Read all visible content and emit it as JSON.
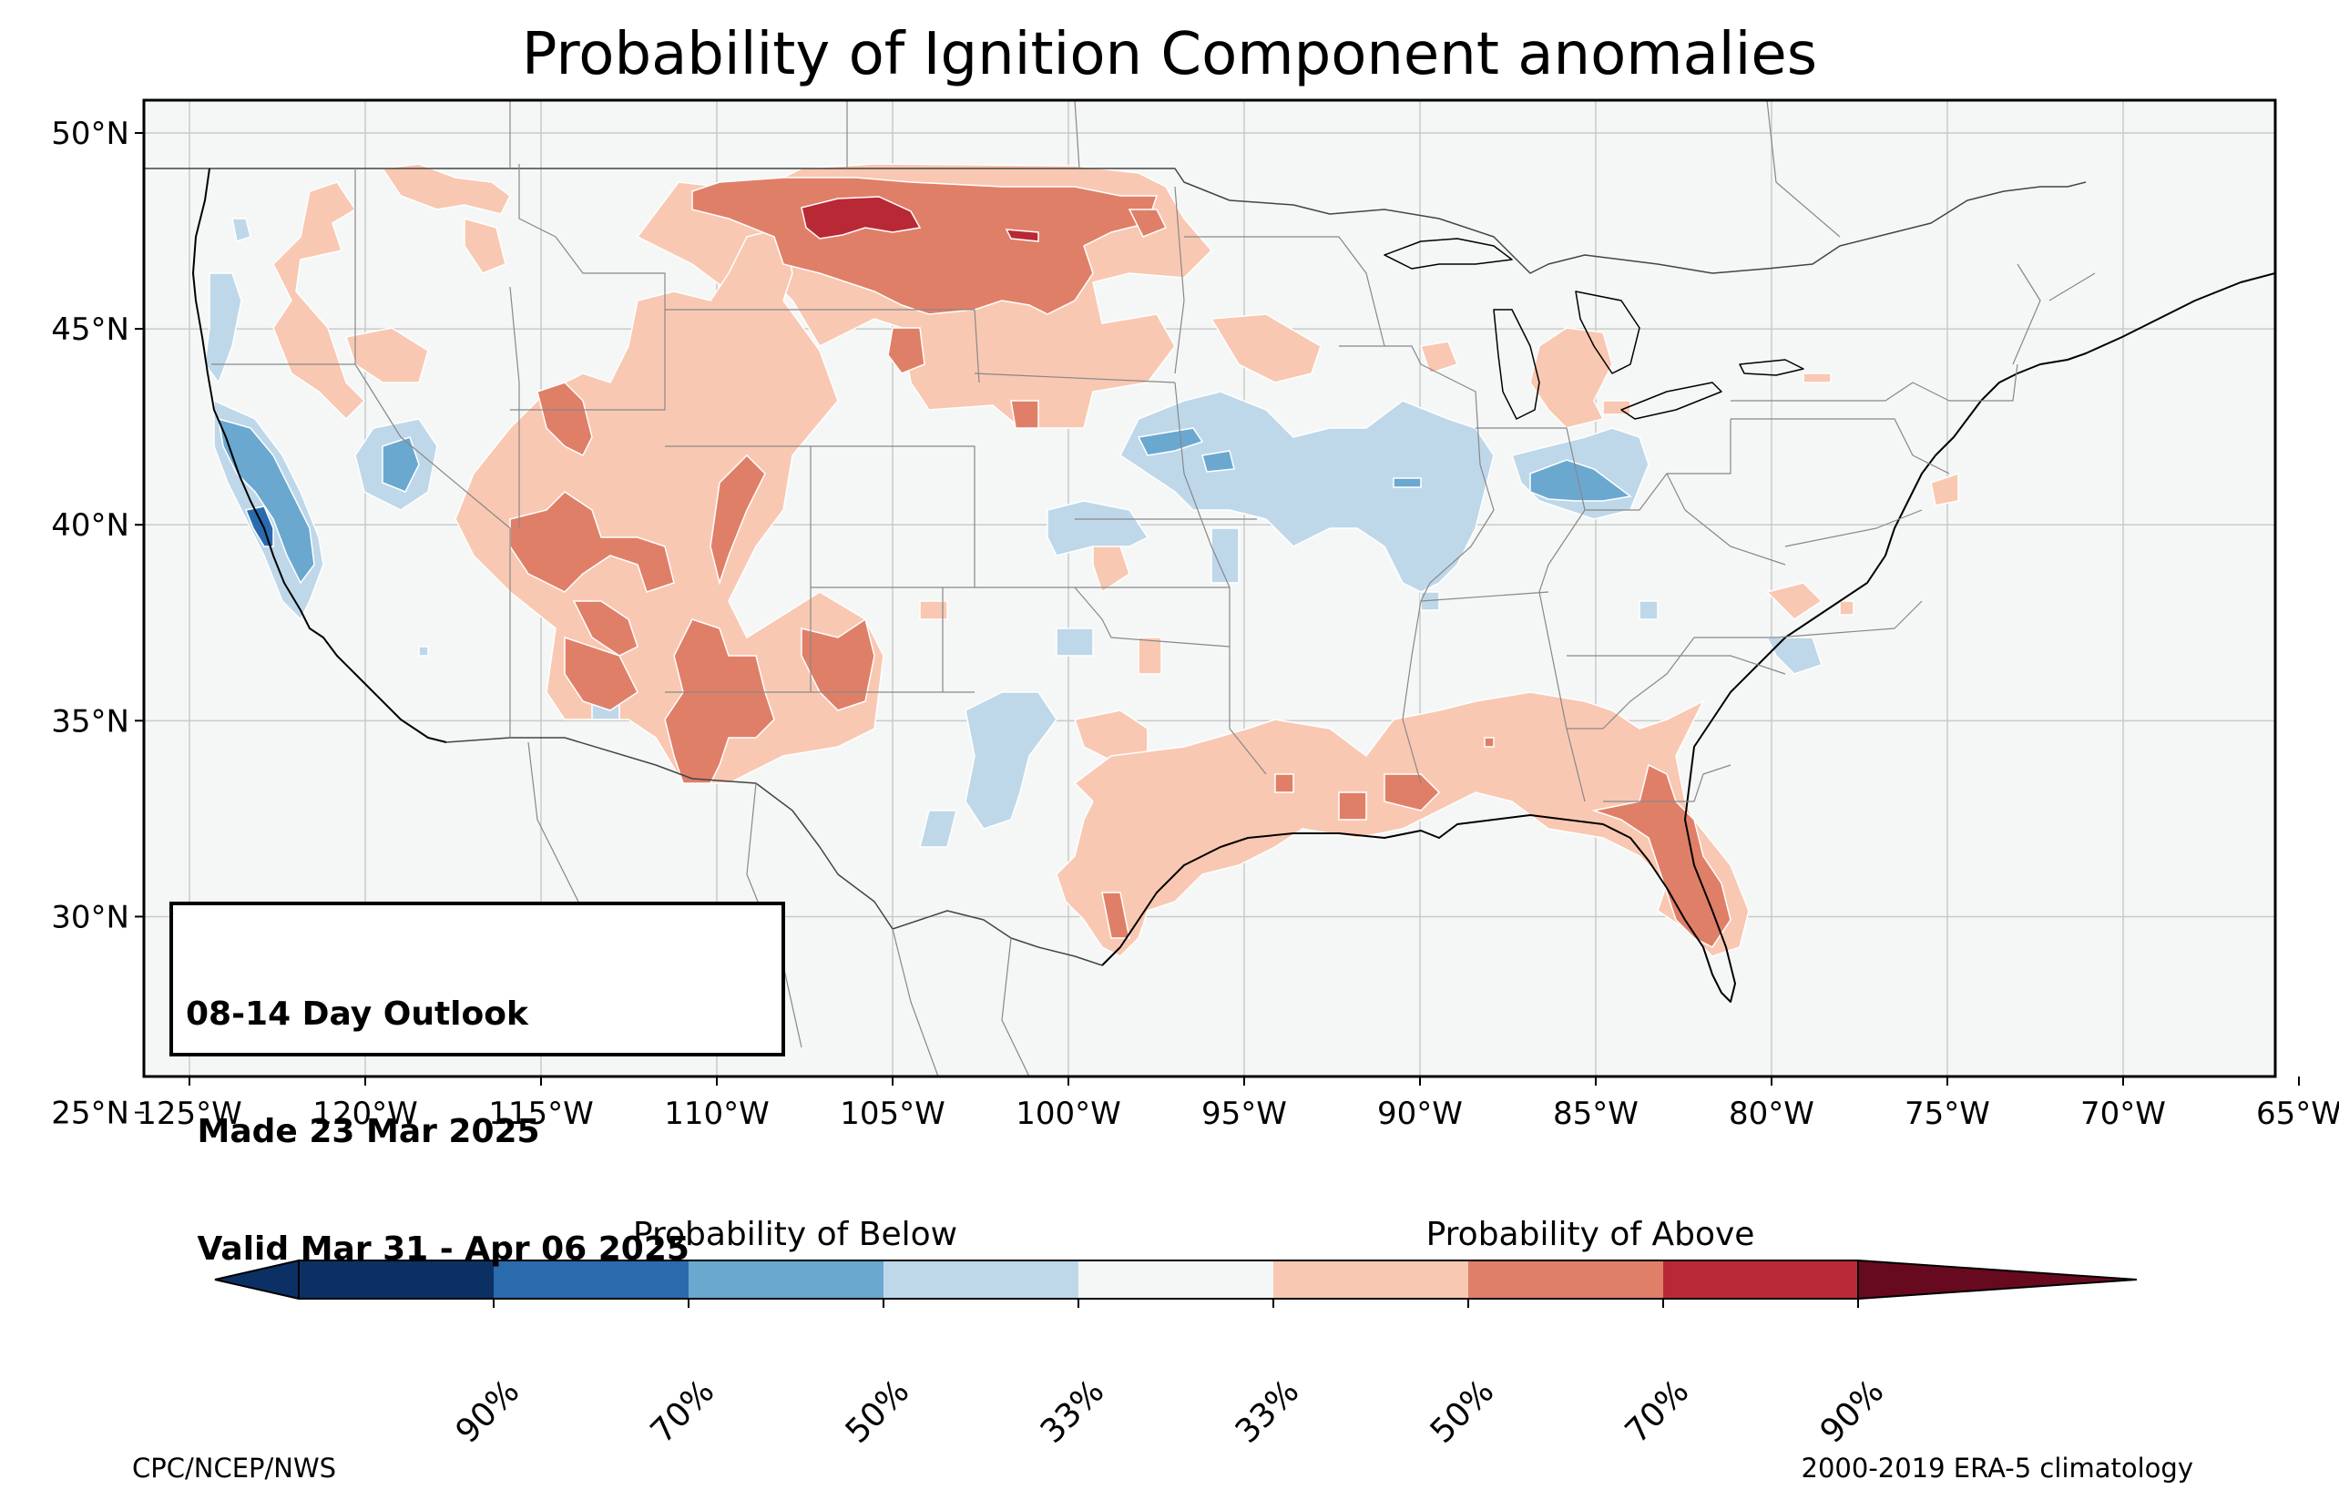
{
  "title": "Probability of Ignition Component anomalies",
  "outlook": {
    "line1": "08-14 Day Outlook",
    "line2": " Made 23 Mar 2025",
    "line3": " Valid Mar 31 - Apr 06 2025"
  },
  "map": {
    "lat_labels": [
      "50°N",
      "45°N",
      "40°N",
      "35°N",
      "30°N",
      "25°N"
    ],
    "lon_labels": [
      "125°W",
      "120°W",
      "115°W",
      "110°W",
      "105°W",
      "100°W",
      "95°W",
      "90°W",
      "85°W",
      "80°W",
      "75°W",
      "70°W",
      "65°W"
    ],
    "colors": {
      "background": "#f5f6f6",
      "below_33": "#bed8ea",
      "below_50": "#6aa8d0",
      "below_70": "#2a6bae",
      "below_90": "#0c3063",
      "above_33": "#f9c8b2",
      "above_50": "#e07f68",
      "above_70": "#b92935",
      "above_90": "#670a20"
    }
  },
  "colorbar": {
    "below_caption": "Probability of Below",
    "above_caption": "Probability of Above",
    "tick_labels": [
      "90%",
      "70%",
      "50%",
      "33%",
      "33%",
      "50%",
      "70%",
      "90%"
    ],
    "colors": [
      "#0c3063",
      "#2a6bae",
      "#6aa8d0",
      "#bed8ea",
      "#f5f6f6",
      "#f9c8b2",
      "#e07f68",
      "#b92935",
      "#670a20"
    ]
  },
  "footer": {
    "left": "CPC/NCEP/NWS",
    "right": "2000-2019 ERA-5 climatology"
  }
}
